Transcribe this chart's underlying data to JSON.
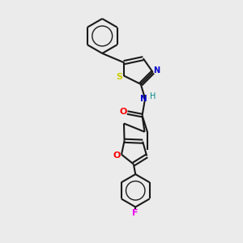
{
  "background_color": "#ebebeb",
  "bond_color": "#1a1a1a",
  "N_color": "#0000cc",
  "S_color": "#cccc00",
  "O_color": "#ff0000",
  "F_color": "#ee00ee",
  "H_color": "#008888",
  "figsize": [
    3.0,
    3.0
  ],
  "dpi": 100,
  "xlim": [
    0,
    10
  ],
  "ylim": [
    0,
    10
  ]
}
